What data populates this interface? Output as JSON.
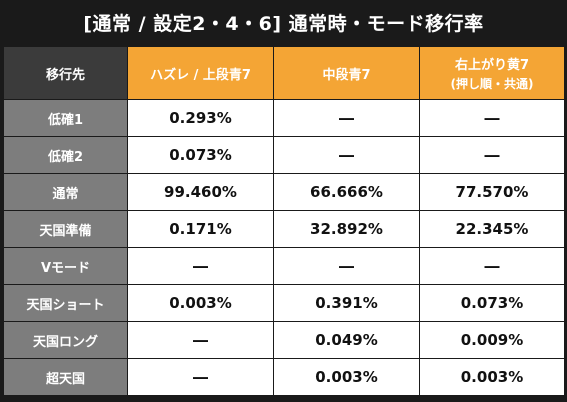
{
  "title": "[通常 / 設定2・4・6] 通常時・モード移行率",
  "corner_label": "移行先",
  "columns": [
    {
      "label": "ハズレ / 上段青7",
      "sub": ""
    },
    {
      "label": "中段青7",
      "sub": ""
    },
    {
      "label": "右上がり黄7",
      "sub": "(押し順・共通)"
    }
  ],
  "rows": [
    {
      "label": "低確1",
      "values": [
        "0.293%",
        "―",
        "―"
      ]
    },
    {
      "label": "低確2",
      "values": [
        "0.073%",
        "―",
        "―"
      ]
    },
    {
      "label": "通常",
      "values": [
        "99.460%",
        "66.666%",
        "77.570%"
      ]
    },
    {
      "label": "天国準備",
      "values": [
        "0.171%",
        "32.892%",
        "22.345%"
      ]
    },
    {
      "label": "Vモード",
      "values": [
        "―",
        "―",
        "―"
      ]
    },
    {
      "label": "天国ショート",
      "values": [
        "0.003%",
        "0.391%",
        "0.073%"
      ]
    },
    {
      "label": "天国ロング",
      "values": [
        "―",
        "0.049%",
        "0.009%"
      ]
    },
    {
      "label": "超天国",
      "values": [
        "―",
        "0.003%",
        "0.003%"
      ]
    }
  ],
  "colors": {
    "header_orange": "#f4a535",
    "row_header_gray": "#7d7d7d",
    "corner_dark": "#3b3b3b",
    "frame_black": "#1a1a1a"
  }
}
